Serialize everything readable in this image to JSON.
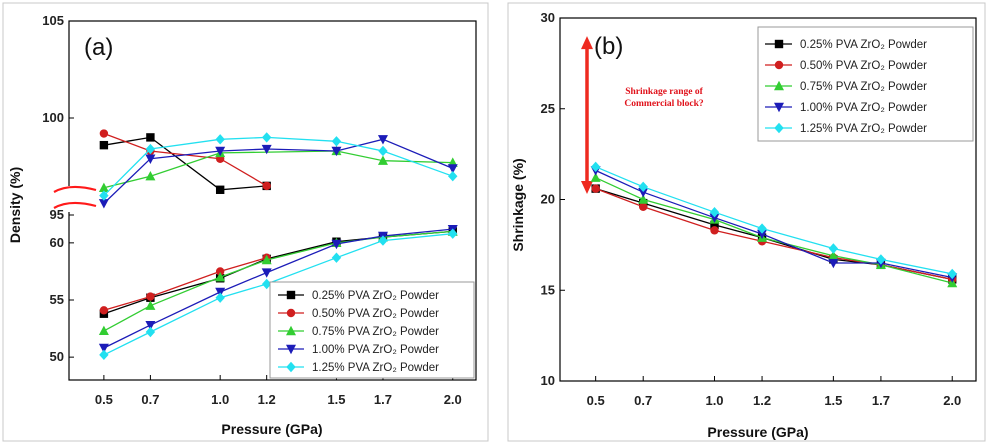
{
  "colors": {
    "s025": "#000000",
    "s050": "#d01f1f",
    "s075": "#32cd32",
    "s100": "#1c1cb8",
    "s125": "#22e0f0",
    "break": "#ff1a1a",
    "arrow": "#ee2a20"
  },
  "chart_data": [
    {
      "type": "line",
      "panel_label": "(a)",
      "xlabel": "Pressure (GPa)",
      "ylabel": "Density (%)",
      "x_ticks": [
        "0.5",
        "0.7",
        "1.0",
        "1.2",
        "1.5",
        "1.7",
        "2.0"
      ],
      "xlim": [
        0.35,
        2.1
      ],
      "y_break": true,
      "upper_ylim": [
        95,
        105
      ],
      "upper_y_ticks": [
        "95",
        "100",
        "105"
      ],
      "lower_ylim": [
        48,
        62
      ],
      "lower_y_ticks": [
        "50",
        "55",
        "60"
      ],
      "legend_position": "bottom-right",
      "series": [
        {
          "name": "0.25% PVA ZrO₂ Powder",
          "color_key": "s025",
          "marker": "square",
          "upper": {
            "x": [
              0.5,
              0.7,
              1.0,
              1.2
            ],
            "y": [
              98.6,
              99.0,
              96.3,
              96.5
            ]
          },
          "lower": {
            "x": [
              0.5,
              0.7,
              1.0,
              1.2,
              1.5,
              1.7,
              2.0
            ],
            "y": [
              53.8,
              55.2,
              56.9,
              58.6,
              60.1,
              60.5,
              61.0
            ]
          }
        },
        {
          "name": "0.50% PVA ZrO₂ Powder",
          "color_key": "s050",
          "marker": "circle",
          "upper": {
            "x": [
              0.5,
              0.7,
              1.0,
              1.2
            ],
            "y": [
              99.2,
              98.3,
              97.9,
              96.5
            ]
          },
          "lower": {
            "x": [
              0.5,
              0.7,
              1.0,
              1.2
            ],
            "y": [
              54.1,
              55.3,
              57.5,
              58.7
            ]
          }
        },
        {
          "name": "0.75% PVA ZrO₂ Powder",
          "color_key": "s075",
          "marker": "triangle-up",
          "upper": {
            "x": [
              0.5,
              0.7,
              1.0,
              1.5,
              1.7,
              2.0
            ],
            "y": [
              96.4,
              97.0,
              98.2,
              98.3,
              97.8,
              97.7
            ]
          },
          "lower": {
            "x": [
              0.5,
              0.7,
              1.0,
              1.2,
              1.5,
              1.7,
              2.0
            ],
            "y": [
              52.3,
              54.5,
              57.0,
              58.5,
              60.0,
              60.5,
              61.0
            ]
          }
        },
        {
          "name": "1.00% PVA ZrO₂ Powder",
          "color_key": "s100",
          "marker": "triangle-down",
          "upper": {
            "x": [
              0.5,
              0.7,
              1.0,
              1.2,
              1.5,
              1.7,
              2.0
            ],
            "y": [
              95.6,
              97.9,
              98.3,
              98.4,
              98.3,
              98.9,
              97.4
            ]
          },
          "lower": {
            "x": [
              0.5,
              0.7,
              1.0,
              1.2,
              1.5,
              1.7,
              2.0
            ],
            "y": [
              50.8,
              52.8,
              55.7,
              57.4,
              59.9,
              60.6,
              61.2
            ]
          }
        },
        {
          "name": "1.25% PVA ZrO₂ Powder",
          "color_key": "s125",
          "marker": "diamond",
          "upper": {
            "x": [
              0.5,
              0.7,
              1.0,
              1.2,
              1.5,
              1.7,
              2.0
            ],
            "y": [
              96.0,
              98.4,
              98.9,
              99.0,
              98.8,
              98.3,
              97.0
            ]
          },
          "lower": {
            "x": [
              0.5,
              0.7,
              1.0,
              1.2,
              1.5,
              1.7,
              2.0
            ],
            "y": [
              50.2,
              52.2,
              55.2,
              56.4,
              58.7,
              60.2,
              60.8
            ]
          }
        }
      ]
    },
    {
      "type": "line",
      "panel_label": "(b)",
      "xlabel": "Pressure (GPa)",
      "ylabel": "Shrinkage (%)",
      "x_ticks": [
        "0.5",
        "0.7",
        "1.0",
        "1.2",
        "1.5",
        "1.7",
        "2.0"
      ],
      "xlim": [
        0.35,
        2.1
      ],
      "ylim": [
        10,
        30
      ],
      "y_ticks": [
        "10",
        "15",
        "20",
        "25",
        "30"
      ],
      "legend_position": "top-right",
      "annotation": {
        "text": "Shrinkage range of Commercial block?",
        "lines": [
          "Shrinkage range of",
          "Commercial block?"
        ],
        "range": [
          20.3,
          29.0
        ]
      },
      "series": [
        {
          "name": "0.25% PVA ZrO₂ Powder",
          "color_key": "s025",
          "marker": "square",
          "x": [
            0.5,
            0.7,
            1.0,
            1.2,
            1.5,
            1.7,
            2.0
          ],
          "y": [
            20.6,
            19.8,
            18.6,
            17.9,
            16.7,
            16.4,
            15.6
          ]
        },
        {
          "name": "0.50% PVA ZrO₂ Powder",
          "color_key": "s050",
          "marker": "circle",
          "x": [
            0.5,
            0.7,
            1.0,
            1.2,
            1.5,
            1.7,
            2.0
          ],
          "y": [
            20.6,
            19.6,
            18.3,
            17.7,
            16.8,
            16.4,
            15.6
          ]
        },
        {
          "name": "0.75% PVA ZrO₂ Powder",
          "color_key": "s075",
          "marker": "triangle-up",
          "x": [
            0.5,
            0.7,
            1.0,
            1.2,
            1.5,
            1.7,
            2.0
          ],
          "y": [
            21.2,
            20.0,
            18.9,
            17.9,
            16.9,
            16.4,
            15.4
          ]
        },
        {
          "name": "1.00% PVA ZrO₂ Powder",
          "color_key": "s100",
          "marker": "triangle-down",
          "x": [
            0.5,
            0.7,
            1.0,
            1.2,
            1.5,
            1.7,
            2.0
          ],
          "y": [
            21.6,
            20.4,
            19.0,
            18.1,
            16.5,
            16.5,
            15.7
          ]
        },
        {
          "name": "1.25% PVA ZrO₂ Powder",
          "color_key": "s125",
          "marker": "diamond",
          "x": [
            0.5,
            0.7,
            1.0,
            1.2,
            1.5,
            1.7,
            2.0
          ],
          "y": [
            21.8,
            20.7,
            19.3,
            18.4,
            17.3,
            16.7,
            15.9
          ]
        }
      ]
    }
  ]
}
